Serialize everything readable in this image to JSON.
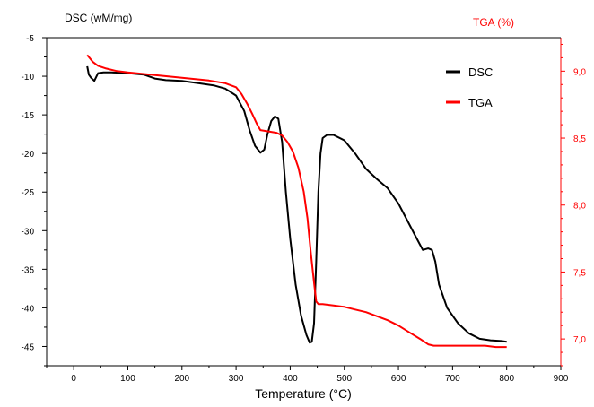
{
  "chart_data": {
    "type": "line",
    "xlabel": "Temperature  (°C)",
    "ylabel": "DSC (wM/mg)",
    "ylabel_right": "TGA (%)",
    "xlim": [
      -50,
      900
    ],
    "ylim": [
      -47.5,
      -5
    ],
    "ylim_right": [
      6.8,
      9.25
    ],
    "x_ticks": [
      0,
      100,
      200,
      300,
      400,
      500,
      600,
      700,
      800,
      900
    ],
    "y_ticks": [
      -5,
      -10,
      -15,
      -20,
      -25,
      -30,
      -35,
      -40,
      -45
    ],
    "y_ticks_right": [
      "9,0",
      "8,5",
      "8,0",
      "7,5",
      "7,0"
    ],
    "y_ticks_right_values": [
      9.0,
      8.5,
      8.0,
      7.5,
      7.0
    ],
    "grid": false,
    "legend_position": "top-right",
    "series": [
      {
        "name": "DSC",
        "axis": "left",
        "color": "#000000",
        "x": [
          25,
          28,
          32,
          38,
          45,
          55,
          70,
          100,
          130,
          150,
          170,
          200,
          230,
          260,
          280,
          300,
          315,
          325,
          335,
          345,
          352,
          358,
          365,
          372,
          378,
          385,
          392,
          400,
          410,
          420,
          430,
          436,
          440,
          444,
          448,
          452,
          456,
          460,
          468,
          480,
          500,
          520,
          540,
          560,
          580,
          600,
          615,
          630,
          645,
          655,
          662,
          668,
          675,
          690,
          710,
          730,
          750,
          770,
          790,
          800
        ],
        "y": [
          -8.7,
          -9.8,
          -10.2,
          -10.6,
          -9.6,
          -9.5,
          -9.5,
          -9.6,
          -9.8,
          -10.3,
          -10.5,
          -10.6,
          -10.9,
          -11.2,
          -11.6,
          -12.5,
          -14.5,
          -17.0,
          -19.0,
          -19.9,
          -19.5,
          -17.5,
          -15.8,
          -15.2,
          -15.5,
          -18.5,
          -25.0,
          -31.0,
          -37.0,
          -41.0,
          -43.5,
          -44.5,
          -44.4,
          -42.0,
          -34.0,
          -25.0,
          -20.0,
          -18.0,
          -17.6,
          -17.6,
          -18.3,
          -20.0,
          -22.0,
          -23.3,
          -24.5,
          -26.5,
          -28.5,
          -30.5,
          -32.5,
          -32.3,
          -32.5,
          -34.0,
          -37.0,
          -40.0,
          -42.0,
          -43.3,
          -44.0,
          -44.2,
          -44.3,
          -44.4
        ]
      },
      {
        "name": "TGA",
        "axis": "right",
        "color": "#ff0000",
        "x": [
          25,
          35,
          45,
          60,
          80,
          100,
          150,
          200,
          250,
          280,
          300,
          310,
          320,
          330,
          338,
          345,
          360,
          375,
          385,
          395,
          405,
          415,
          425,
          432,
          438,
          444,
          448,
          452,
          460,
          480,
          500,
          520,
          540,
          560,
          580,
          600,
          620,
          640,
          655,
          665,
          680,
          700,
          720,
          740,
          760,
          780,
          800
        ],
        "y": [
          9.12,
          9.07,
          9.04,
          9.02,
          9.0,
          8.99,
          8.97,
          8.95,
          8.93,
          8.91,
          8.88,
          8.83,
          8.76,
          8.68,
          8.61,
          8.56,
          8.55,
          8.54,
          8.52,
          8.47,
          8.4,
          8.28,
          8.1,
          7.9,
          7.65,
          7.42,
          7.28,
          7.26,
          7.26,
          7.25,
          7.24,
          7.22,
          7.2,
          7.17,
          7.14,
          7.1,
          7.05,
          7.0,
          6.96,
          6.95,
          6.95,
          6.95,
          6.95,
          6.95,
          6.95,
          6.94,
          6.94
        ]
      }
    ]
  }
}
